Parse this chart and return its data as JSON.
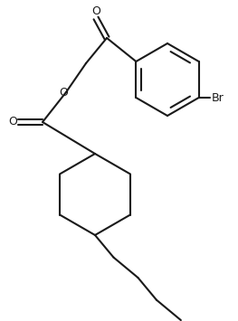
{
  "background_color": "#ffffff",
  "line_color": "#1a1a1a",
  "line_width": 1.5,
  "font_size": 9,
  "br_label": "Br",
  "o_label1": "O",
  "o_label2": "O",
  "o_label3": "O",
  "figw": 2.63,
  "figh": 3.55,
  "dpi": 100,
  "xlim": [
    0,
    263
  ],
  "ylim": [
    0,
    355
  ]
}
